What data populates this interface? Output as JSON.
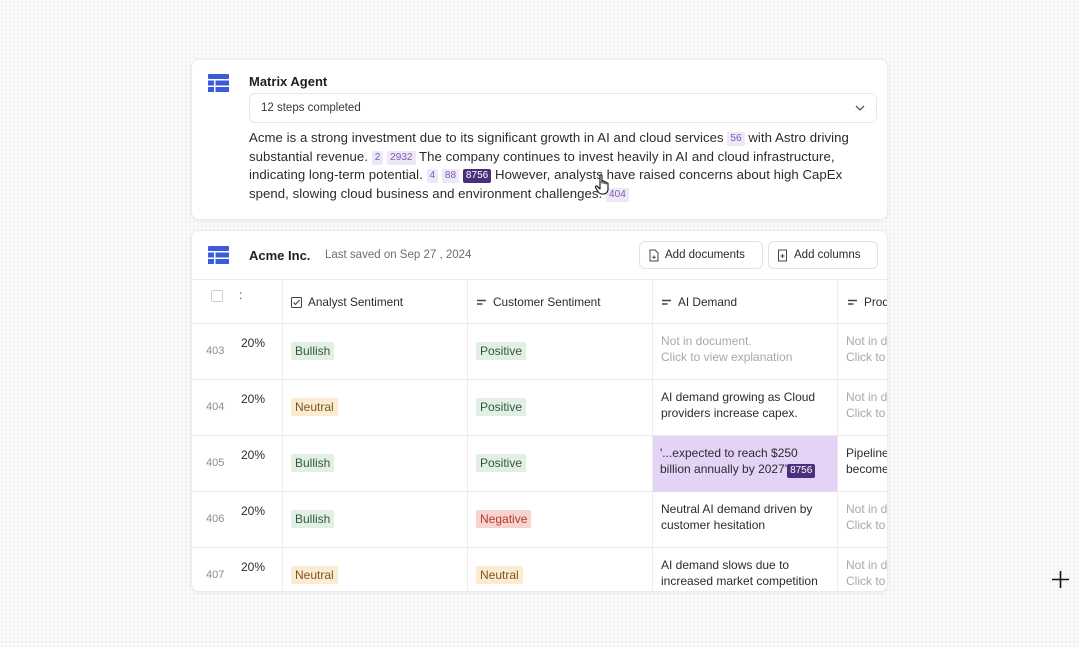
{
  "agent": {
    "title": "Matrix Agent",
    "steps_label": "12 steps completed",
    "summary": {
      "t1": "Acme is a strong investment due to its significant growth in AI and cloud services ",
      "c1": "56",
      "t2": " with Astro driving substantial revenue. ",
      "c2": "2",
      "c3": "2932",
      "t3": " The company continues to invest heavily in AI and cloud infrastructure, indicating long-term potential. ",
      "c4": "4",
      "c5": "88",
      "c6": "8756",
      "t4": " However, analysts have raised concerns about high CapEx spend, slowing cloud business and environment challenges. ",
      "c7": "404"
    }
  },
  "table": {
    "title": "Acme Inc.",
    "saved": "Last saved on Sep 27 , 2024",
    "add_documents": "Add documents",
    "add_columns": "Add columns",
    "headers": {
      "menu": ":",
      "analyst": "Analyst Sentiment",
      "customer": "Customer Sentiment",
      "ai_demand": "AI Demand",
      "product": "Prod"
    },
    "rows": [
      {
        "num": "403",
        "pct": "20%",
        "analyst": "Bullish",
        "customer": "Positive",
        "ai1": "Not in document.",
        "ai2": "Click to view explanation",
        "prod1": "Not in d",
        "prod2": "Click to"
      },
      {
        "num": "404",
        "pct": "20%",
        "analyst": "Neutral",
        "customer": "Positive",
        "ai1": "AI demand growing as Cloud",
        "ai2": "providers increase capex.",
        "prod1": "Not in d",
        "prod2": "Click to"
      },
      {
        "num": "405",
        "pct": "20%",
        "analyst": "Bullish",
        "customer": "Positive",
        "ai1": "'...expected to reach $250",
        "ai2": "billion annually by 2027'",
        "ai_cite": "8756",
        "prod1": "Pipeline",
        "prod2": "become"
      },
      {
        "num": "406",
        "pct": "20%",
        "analyst": "Bullish",
        "customer": "Negative",
        "ai1": "Neutral AI demand driven by",
        "ai2": "customer hesitation",
        "prod1": "Not in d",
        "prod2": "Click to"
      },
      {
        "num": "407",
        "pct": "20%",
        "analyst": "Neutral",
        "customer": "Neutral",
        "ai1": "AI demand slows due to",
        "ai2": "increased market competition",
        "prod1": "Not in d",
        "prod2": "Click to"
      }
    ]
  },
  "icons": [
    "table-grid-icon",
    "chevron-down-icon",
    "hand-pointer-icon",
    "add-document-icon",
    "add-column-icon",
    "checkbox-icon",
    "text-column-icon",
    "crosshair-icon"
  ],
  "colors": {
    "accent": "#3b5bdb",
    "cite_bg": "#ede7f6",
    "cite_active": "#4a2f7c",
    "highlight": "#e5d2f7",
    "bullish": "#e1efe4",
    "neutral": "#fbecd1",
    "negative": "#f8d4d0"
  }
}
